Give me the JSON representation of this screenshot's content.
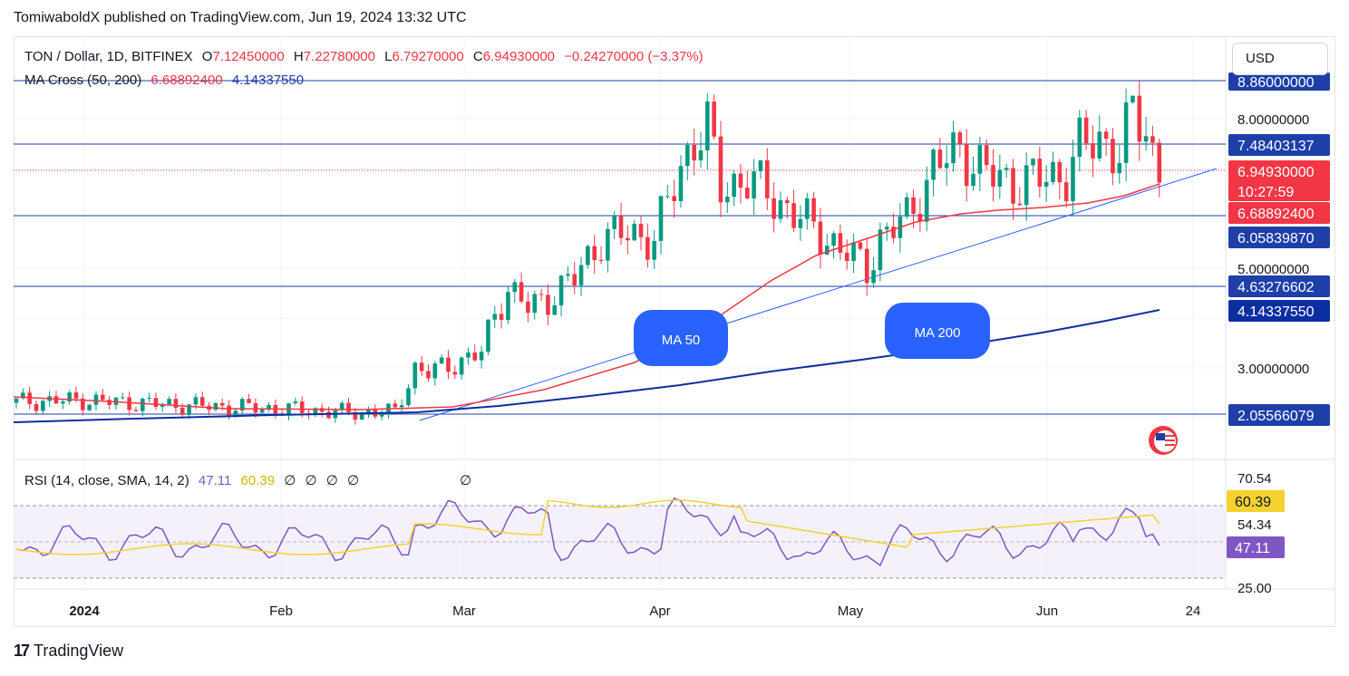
{
  "header": {
    "published": "TomiwaboldX published on TradingView.com, Jun 19, 2024 13:32 UTC",
    "symbol": "TON / Dollar, 1D, BITFINEX",
    "open_label": "O",
    "open": "7.12450000",
    "high_label": "H",
    "high": "7.22780000",
    "low_label": "L",
    "low": "6.79270000",
    "close_label": "C",
    "close": "6.94930000",
    "change": "−0.24270000 (−3.37%)",
    "ma_label": "MA Cross (50, 200)",
    "ma50_value": "6.68892400",
    "ma200_value": "4.14337550",
    "currency": "USD"
  },
  "rsi_legend": {
    "label": "RSI (14, close, SMA, 14, 2)",
    "rsi": "47.11",
    "sma": "60.39",
    "empties": [
      "∅",
      "∅",
      "∅",
      "∅"
    ],
    "marker": "∅"
  },
  "footer": {
    "brand": "TradingView",
    "brand_mark": "17"
  },
  "colors": {
    "up": "#089981",
    "down": "#f23645",
    "ma50": "#f23645",
    "ma200": "#0d2ea0",
    "hline": "#1e3fa8",
    "rsi": "#7e57c2",
    "rsi_sma": "#f5d130",
    "tag_blue": "#2962ff"
  },
  "chart_data": [
    {
      "type": "candlestick",
      "title": "TON / Dollar, 1D, BITFINEX",
      "ylim": [
        1.0,
        9.2
      ],
      "price_ticks": [
        "8.00000000",
        "5.00000000",
        "3.00000000"
      ],
      "time_ticks": [
        "2024",
        "Feb",
        "Mar",
        "Apr",
        "May",
        "Jun",
        "24"
      ],
      "horizontal_levels": [
        "8.86000000",
        "7.48403137",
        "6.05839870",
        "4.63276602",
        "2.05566079"
      ],
      "axis_tags": [
        {
          "label": "8.86000000",
          "kind": "level"
        },
        {
          "label": "7.48403137",
          "kind": "level"
        },
        {
          "label": "6.94930000",
          "kind": "last"
        },
        {
          "label": "10:27:59",
          "kind": "countdown"
        },
        {
          "label": "6.68892400",
          "kind": "ma50"
        },
        {
          "label": "6.05839870",
          "kind": "level"
        },
        {
          "label": "4.63276602",
          "kind": "level"
        },
        {
          "label": "4.14337550",
          "kind": "ma200"
        },
        {
          "label": "2.05566079",
          "kind": "level"
        }
      ],
      "annotations": [
        "MA 50",
        "MA 200"
      ],
      "candles_approx": [
        {
          "date": "Mar 12",
          "o": 4.6,
          "h": 5.0,
          "l": 4.1,
          "c": 4.4
        },
        {
          "date": "Apr 10",
          "o": 7.6,
          "h": 8.86,
          "l": 7.0,
          "c": 8.2
        },
        {
          "date": "May 1",
          "o": 5.3,
          "h": 5.7,
          "l": 4.63,
          "c": 5.0
        },
        {
          "date": "Jun 15",
          "o": 8.1,
          "h": 8.4,
          "l": 7.7,
          "c": 7.95
        },
        {
          "date": "Jun 19",
          "o": 7.1245,
          "h": 7.2278,
          "l": 6.7927,
          "c": 6.9493
        }
      ],
      "ma50": [
        {
          "date": "Jan 1",
          "v": 2.32
        },
        {
          "date": "Feb 1",
          "v": 2.12
        },
        {
          "date": "Feb 20",
          "v": 2.1
        },
        {
          "date": "Mar 1",
          "v": 2.18
        },
        {
          "date": "Apr 1",
          "v": 3.55
        },
        {
          "date": "Apr 25",
          "v": 5.1
        },
        {
          "date": "May 15",
          "v": 6.0
        },
        {
          "date": "Jun 1",
          "v": 6.2
        },
        {
          "date": "Jun 19",
          "v": 6.69
        }
      ],
      "ma200": [
        {
          "date": "Jan 1",
          "v": 1.88
        },
        {
          "date": "Feb 1",
          "v": 1.98
        },
        {
          "date": "Mar 1",
          "v": 2.18
        },
        {
          "date": "Apr 1",
          "v": 2.68
        },
        {
          "date": "May 1",
          "v": 3.15
        },
        {
          "date": "Jun 1",
          "v": 3.72
        },
        {
          "date": "Jun 19",
          "v": 4.14
        }
      ]
    },
    {
      "type": "line",
      "title": "RSI (14, close, SMA, 14, 2)",
      "ylim": [
        25.0,
        70.54
      ],
      "ticks": [
        "70.54",
        "54.34",
        "25.00"
      ],
      "tags": [
        {
          "label": "60.39",
          "kind": "sma"
        },
        {
          "label": "47.11",
          "kind": "rsi"
        }
      ],
      "bands": [
        30,
        70
      ],
      "rsi": [
        {
          "date": "Jan 1",
          "v": 47
        },
        {
          "date": "Jan 15",
          "v": 46
        },
        {
          "date": "Feb 1",
          "v": 41
        },
        {
          "date": "Feb 15",
          "v": 43
        },
        {
          "date": "Feb 27",
          "v": 62
        },
        {
          "date": "Mar 6",
          "v": 55
        },
        {
          "date": "Mar 12",
          "v": 72
        },
        {
          "date": "Mar 20",
          "v": 60
        },
        {
          "date": "Apr 1",
          "v": 64
        },
        {
          "date": "Apr 10",
          "v": 66
        },
        {
          "date": "Apr 20",
          "v": 50
        },
        {
          "date": "May 1",
          "v": 42
        },
        {
          "date": "May 10",
          "v": 58
        },
        {
          "date": "May 25",
          "v": 50
        },
        {
          "date": "Jun 5",
          "v": 55
        },
        {
          "date": "Jun 15",
          "v": 61
        },
        {
          "date": "Jun 19",
          "v": 47.11
        }
      ],
      "rsi_sma_last": 60.39
    }
  ]
}
